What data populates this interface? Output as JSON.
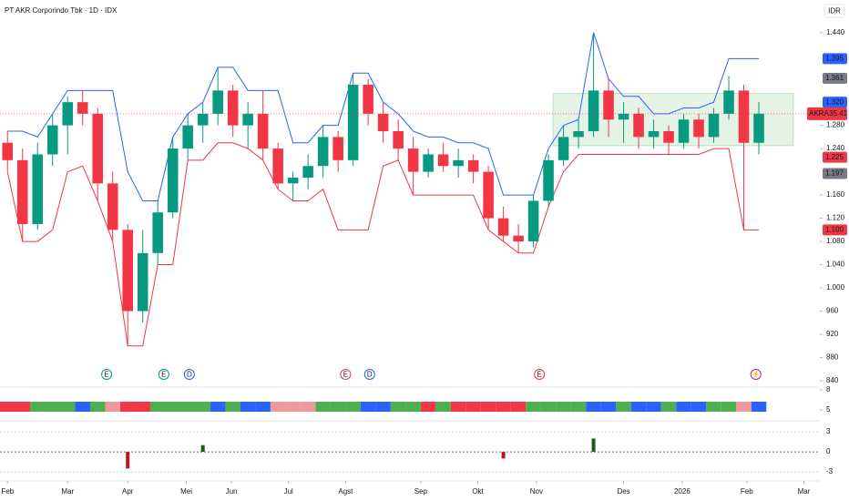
{
  "chart_data": [
    {
      "type": "candlestick",
      "title": "PT AKR Corporindo Tbk · 1D · IDX",
      "currency": "IDR",
      "x": [
        0,
        1,
        2,
        3,
        4,
        5,
        6,
        7,
        8,
        9,
        10,
        11,
        12,
        13,
        14,
        15,
        16,
        17,
        18,
        19,
        20,
        21,
        22,
        23,
        24,
        25,
        26,
        27,
        28,
        29,
        30,
        31,
        32,
        33,
        34,
        35,
        36,
        37,
        38,
        39,
        40,
        41,
        42,
        43,
        44,
        45,
        46,
        47,
        48,
        49,
        50
      ],
      "open": [
        1250,
        1220,
        1110,
        1230,
        1280,
        1320,
        1300,
        1180,
        1100,
        960,
        1060,
        1130,
        1240,
        1280,
        1300,
        1340,
        1280,
        1300,
        1240,
        1180,
        1190,
        1210,
        1260,
        1220,
        1350,
        1300,
        1270,
        1240,
        1200,
        1230,
        1210,
        1220,
        1200,
        1120,
        1090,
        1080,
        1150,
        1220,
        1260,
        1270,
        1340,
        1290,
        1300,
        1260,
        1270,
        1250,
        1290,
        1260,
        1300,
        1340,
        1250
      ],
      "high": [
        1270,
        1240,
        1250,
        1300,
        1330,
        1340,
        1310,
        1200,
        1110,
        1100,
        1150,
        1260,
        1300,
        1320,
        1380,
        1350,
        1320,
        1340,
        1250,
        1200,
        1230,
        1280,
        1270,
        1370,
        1360,
        1320,
        1290,
        1260,
        1240,
        1250,
        1240,
        1230,
        1210,
        1140,
        1110,
        1160,
        1230,
        1280,
        1290,
        1440,
        1360,
        1320,
        1310,
        1290,
        1280,
        1300,
        1300,
        1310,
        1365,
        1350,
        1320
      ],
      "low": [
        1200,
        1080,
        1100,
        1210,
        1230,
        1280,
        1150,
        1080,
        900,
        940,
        1040,
        1120,
        1220,
        1250,
        1280,
        1260,
        1240,
        1220,
        1170,
        1150,
        1170,
        1190,
        1200,
        1210,
        1280,
        1250,
        1220,
        1160,
        1190,
        1200,
        1190,
        1180,
        1100,
        1080,
        1060,
        1070,
        1140,
        1210,
        1240,
        1260,
        1260,
        1250,
        1240,
        1240,
        1230,
        1240,
        1240,
        1250,
        1290,
        1100,
        1230
      ],
      "close": [
        1220,
        1110,
        1230,
        1280,
        1320,
        1300,
        1180,
        1100,
        960,
        1060,
        1130,
        1240,
        1280,
        1300,
        1340,
        1280,
        1300,
        1240,
        1180,
        1190,
        1210,
        1260,
        1220,
        1350,
        1300,
        1270,
        1240,
        1200,
        1230,
        1210,
        1220,
        1200,
        1120,
        1090,
        1080,
        1150,
        1220,
        1260,
        1270,
        1340,
        1290,
        1300,
        1260,
        1270,
        1250,
        1290,
        1260,
        1300,
        1340,
        1250,
        1300
      ],
      "up_color": "#089981",
      "down_color": "#f23645",
      "series": [
        {
          "color": "#2962ff",
          "values": [
            1270,
            1270,
            1260,
            1300,
            1340,
            1340,
            1340,
            1340,
            1200,
            1150,
            1150,
            1260,
            1300,
            1320,
            1380,
            1380,
            1340,
            1340,
            1340,
            1250,
            1250,
            1280,
            1280,
            1370,
            1370,
            1320,
            1300,
            1270,
            1260,
            1260,
            1250,
            1250,
            1240,
            1160,
            1160,
            1160,
            1240,
            1280,
            1290,
            1440,
            1360,
            1330,
            1330,
            1300,
            1300,
            1310,
            1310,
            1320,
            1395,
            1395,
            1395
          ]
        },
        {
          "color": "#f23645",
          "values": [
            1200,
            1080,
            1080,
            1100,
            1200,
            1210,
            1150,
            1080,
            900,
            900,
            1040,
            1040,
            1220,
            1220,
            1250,
            1250,
            1240,
            1220,
            1170,
            1150,
            1150,
            1170,
            1100,
            1100,
            1100,
            1210,
            1220,
            1160,
            1160,
            1160,
            1160,
            1160,
            1100,
            1080,
            1060,
            1060,
            1140,
            1200,
            1230,
            1230,
            1230,
            1230,
            1230,
            1230,
            1230,
            1230,
            1230,
            1240,
            1240,
            1100,
            1100
          ]
        }
      ],
      "zone": {
        "x": [
          36.3,
          52.3
        ],
        "y": [
          1245,
          1335
        ],
        "color": "#4caf50"
      },
      "xlim": [
        -0.5,
        54
      ],
      "xticks": [
        {
          "value": 0,
          "label": "Feb"
        },
        {
          "value": 4,
          "label": "Mar"
        },
        {
          "value": 8,
          "label": "Apr"
        },
        {
          "value": 11.9,
          "label": "Mei"
        },
        {
          "value": 14.9,
          "label": "Jun"
        },
        {
          "value": 18.7,
          "label": "Jul"
        },
        {
          "value": 22.5,
          "label": "Agst"
        },
        {
          "value": 27.5,
          "label": "Sep"
        },
        {
          "value": 31.3,
          "label": "Okt"
        },
        {
          "value": 35.2,
          "label": "Nov"
        },
        {
          "value": 41,
          "label": "Des"
        },
        {
          "value": 44.9,
          "label": "2026"
        },
        {
          "value": 49.2,
          "label": "Feb"
        },
        {
          "value": 53,
          "label": "Mar"
        }
      ],
      "ylim": [
        829,
        1496
      ],
      "yticks": [
        {
          "value": 1440,
          "label": "1.440"
        },
        {
          "value": 1280,
          "label": "1.280"
        },
        {
          "value": 1240,
          "label": "1.240"
        },
        {
          "value": 1160,
          "label": "1.160"
        },
        {
          "value": 1120,
          "label": "1.120"
        },
        {
          "value": 1080,
          "label": "1.080"
        },
        {
          "value": 1040,
          "label": "1.040"
        },
        {
          "value": 1000,
          "label": "1.000"
        },
        960,
        920,
        880,
        840
      ],
      "price_labels": [
        {
          "value": 1395,
          "label": "1.395",
          "color": "#2962ff"
        },
        {
          "value": 1361,
          "label": "1.361",
          "color": "#787b86"
        },
        {
          "value": 1320,
          "label": "1.320",
          "color": "#2962ff"
        },
        {
          "value": 1300,
          "label": "AKRA",
          "timer": "35:41",
          "color": "#f23645"
        },
        {
          "value": 1225,
          "label": "1.225",
          "color": "#f23645"
        },
        {
          "value": 1197,
          "label": "1.197",
          "color": "#787b86"
        },
        {
          "value": 1100,
          "label": "1.100",
          "color": "#f23645"
        }
      ],
      "events": [
        {
          "x": 6.6,
          "label": "E",
          "color": "#089981"
        },
        {
          "x": 10.4,
          "label": "E",
          "color": "#089981"
        },
        {
          "x": 12.1,
          "label": "D",
          "color": "#2962ff"
        },
        {
          "x": 22.5,
          "label": "E",
          "color": "#f23645"
        },
        {
          "x": 24.1,
          "label": "D",
          "color": "#2962ff"
        },
        {
          "x": 35.4,
          "label": "E",
          "color": "#f23645"
        },
        {
          "x": 49.8,
          "label": "⚡",
          "color": "#9c27b0"
        }
      ]
    },
    {
      "type": "strip",
      "colors": [
        "#f23645",
        "#f23645",
        "#4caf50",
        "#4caf50",
        "#4caf50",
        "#2962ff",
        "#4caf50",
        "#ef9a9a",
        "#f23645",
        "#f23645",
        "#4caf50",
        "#4caf50",
        "#4caf50",
        "#4caf50",
        "#2962ff",
        "#4caf50",
        "#2962ff",
        "#2962ff",
        "#ef9a9a",
        "#ef9a9a",
        "#ef9a9a",
        "#4caf50",
        "#4caf50",
        "#4caf50",
        "#2962ff",
        "#2962ff",
        "#4caf50",
        "#4caf50",
        "#f23645",
        "#4caf50",
        "#f23645",
        "#f23645",
        "#f23645",
        "#f23645",
        "#f23645",
        "#4caf50",
        "#4caf50",
        "#4caf50",
        "#4caf50",
        "#2962ff",
        "#2962ff",
        "#4caf50",
        "#2962ff",
        "#2962ff",
        "#4caf50",
        "#2962ff",
        "#2962ff",
        "#4caf50",
        "#4caf50",
        "#ef9a9a",
        "#2962ff"
      ],
      "ylim": [
        3.36,
        8.41
      ],
      "yticks": [
        8,
        5
      ]
    },
    {
      "type": "bar",
      "values": [
        0,
        0,
        0,
        0,
        0,
        0,
        0,
        0,
        -2.5,
        0,
        0,
        0,
        0,
        1,
        0,
        0,
        0,
        0,
        0,
        0,
        0,
        0,
        0,
        0,
        0,
        0,
        0,
        0,
        0,
        0,
        0,
        0,
        0,
        -1,
        0,
        0,
        0,
        0,
        0,
        2,
        0,
        0,
        0,
        0,
        0,
        0,
        0,
        0,
        0,
        0,
        0
      ],
      "up_color": "#1b5e20",
      "down_color": "#b71c1c",
      "ylim": [
        -4.36,
        4.64
      ],
      "yticks": [
        3,
        0,
        -3
      ]
    }
  ]
}
